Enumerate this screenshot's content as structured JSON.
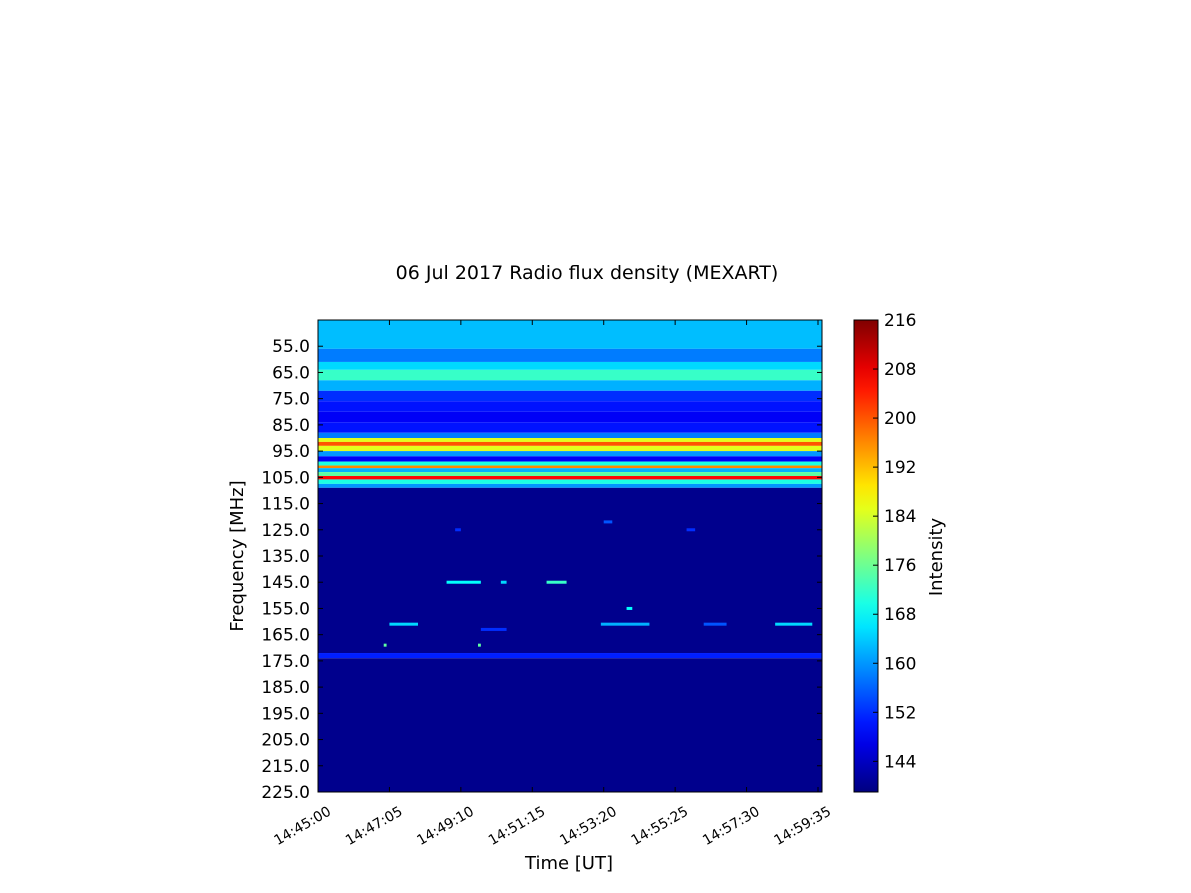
{
  "chart_data": {
    "type": "heatmap",
    "title": "06 Jul 2017 Radio flux density (MEXART)",
    "xlabel": "Time [UT]",
    "ylabel": "Frequency [MHz]",
    "x_tick_labels": [
      "14:45:00",
      "14:47:05",
      "14:49:10",
      "14:51:15",
      "14:53:20",
      "14:55:25",
      "14:57:30",
      "14:59:35"
    ],
    "y_tick_labels": [
      "55.0",
      "65.0",
      "75.0",
      "85.0",
      "95.0",
      "105.0",
      "115.0",
      "125.0",
      "135.0",
      "145.0",
      "155.0",
      "165.0",
      "175.0",
      "185.0",
      "195.0",
      "205.0",
      "215.0",
      "225.0"
    ],
    "y_tick_values": [
      55,
      65,
      75,
      85,
      95,
      105,
      115,
      125,
      135,
      145,
      155,
      165,
      175,
      185,
      195,
      205,
      215,
      225
    ],
    "ylim": [
      225.0,
      45.0
    ],
    "colorbar": {
      "label": "Intensity",
      "min": 139,
      "max": 216,
      "tick_labels": [
        "216",
        "208",
        "200",
        "192",
        "184",
        "176",
        "168",
        "160",
        "152",
        "144"
      ],
      "tick_values": [
        216,
        208,
        200,
        192,
        184,
        176,
        168,
        160,
        152,
        144
      ],
      "colormap": "jet"
    },
    "frequency_bands": [
      {
        "from": 45,
        "to": 56,
        "intensity": 163
      },
      {
        "from": 56,
        "to": 61,
        "intensity": 158
      },
      {
        "from": 61,
        "to": 64,
        "intensity": 165
      },
      {
        "from": 64,
        "to": 68,
        "intensity": 172
      },
      {
        "from": 68,
        "to": 72,
        "intensity": 162
      },
      {
        "from": 72,
        "to": 76,
        "intensity": 152
      },
      {
        "from": 76,
        "to": 80,
        "intensity": 150
      },
      {
        "from": 80,
        "to": 84,
        "intensity": 148
      },
      {
        "from": 84,
        "to": 88,
        "intensity": 150
      },
      {
        "from": 88,
        "to": 90,
        "intensity": 158
      },
      {
        "from": 90,
        "to": 91.5,
        "intensity": 185
      },
      {
        "from": 91.5,
        "to": 93,
        "intensity": 200
      },
      {
        "from": 93,
        "to": 95,
        "intensity": 185
      },
      {
        "from": 95,
        "to": 97,
        "intensity": 160
      },
      {
        "from": 97,
        "to": 99,
        "intensity": 148
      },
      {
        "from": 99,
        "to": 100.5,
        "intensity": 170
      },
      {
        "from": 100.5,
        "to": 101.5,
        "intensity": 196
      },
      {
        "from": 101.5,
        "to": 103,
        "intensity": 162
      },
      {
        "from": 103,
        "to": 104.5,
        "intensity": 175
      },
      {
        "from": 104.5,
        "to": 105.8,
        "intensity": 206
      },
      {
        "from": 105.8,
        "to": 107.5,
        "intensity": 170
      },
      {
        "from": 107.5,
        "to": 109,
        "intensity": 160
      },
      {
        "from": 109,
        "to": 172,
        "intensity": 140
      },
      {
        "from": 172,
        "to": 174,
        "intensity": 151
      },
      {
        "from": 174,
        "to": 225,
        "intensity": 140
      }
    ],
    "sporadic_spots": [
      {
        "freq": 125,
        "time_from": "14:49:00",
        "time_to": "14:49:10",
        "intensity": 152
      },
      {
        "freq": 122,
        "time_from": "14:53:20",
        "time_to": "14:53:35",
        "intensity": 155
      },
      {
        "freq": 125,
        "time_from": "14:55:45",
        "time_to": "14:56:00",
        "intensity": 152
      },
      {
        "freq": 145,
        "time_from": "14:48:45",
        "time_to": "14:49:45",
        "intensity": 168
      },
      {
        "freq": 145,
        "time_from": "14:50:20",
        "time_to": "14:50:30",
        "intensity": 165
      },
      {
        "freq": 145,
        "time_from": "14:51:40",
        "time_to": "14:52:15",
        "intensity": 172
      },
      {
        "freq": 161,
        "time_from": "14:47:05",
        "time_to": "14:47:55",
        "intensity": 165
      },
      {
        "freq": 161,
        "time_from": "14:53:15",
        "time_to": "14:54:40",
        "intensity": 162
      },
      {
        "freq": 161,
        "time_from": "14:56:15",
        "time_to": "14:56:55",
        "intensity": 155
      },
      {
        "freq": 161,
        "time_from": "14:58:20",
        "time_to": "14:59:25",
        "intensity": 165
      },
      {
        "freq": 163,
        "time_from": "14:49:45",
        "time_to": "14:50:30",
        "intensity": 152
      },
      {
        "freq": 169,
        "time_from": "14:46:55",
        "time_to": "14:47:00",
        "intensity": 175
      },
      {
        "freq": 169,
        "time_from": "14:49:40",
        "time_to": "14:49:45",
        "intensity": 175
      },
      {
        "freq": 155,
        "time_from": "14:54:00",
        "time_to": "14:54:10",
        "intensity": 168
      }
    ]
  }
}
